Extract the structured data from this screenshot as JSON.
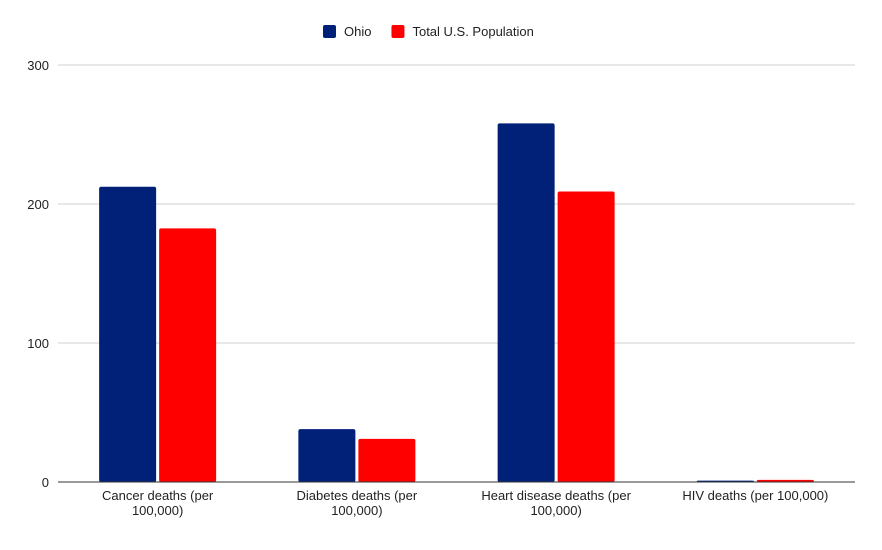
{
  "chart_data": {
    "type": "bar",
    "categories": [
      [
        "Cancer deaths (per",
        "100,000)"
      ],
      [
        "Diabetes deaths (per",
        "100,000)"
      ],
      [
        "Heart disease deaths (per",
        "100,000)"
      ],
      [
        "HIV deaths (per 100,000)"
      ]
    ],
    "series": [
      {
        "name": "Ohio",
        "color": "#002177",
        "values": [
          212.4,
          38,
          258,
          1
        ]
      },
      {
        "name": "Total U.S. Population",
        "color": "#ff0000",
        "values": [
          182.5,
          31,
          209,
          1.5
        ]
      }
    ],
    "ylim": [
      0,
      300
    ],
    "yticks": [
      "0",
      "100",
      "200",
      "300"
    ],
    "grid": true,
    "legend": "top",
    "title": "",
    "xlabel": "",
    "ylabel": ""
  }
}
